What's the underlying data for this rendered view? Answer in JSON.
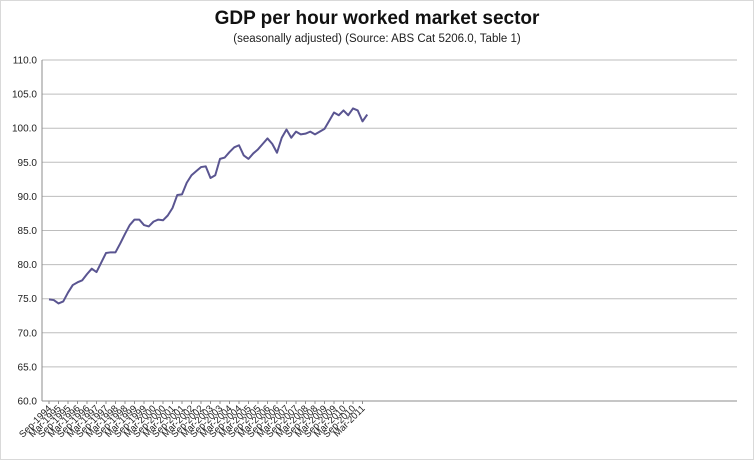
{
  "chart_data": {
    "type": "line",
    "title": "GDP per hour worked market sector",
    "subtitle": "(seasonally adjusted) (Source: ABS Cat 5206.0, Table 1)",
    "xlabel": "",
    "ylabel": "",
    "ylim": [
      60.0,
      110.0
    ],
    "yticks": [
      "60.0",
      "65.0",
      "70.0",
      "75.0",
      "80.0",
      "85.0",
      "90.0",
      "95.0",
      "100.0",
      "105.0",
      "110.0"
    ],
    "grid": true,
    "legend": "none",
    "line_color": "#5a5591",
    "x_tick_labels": [
      "Sep-1994",
      "Mar-1995",
      "Sep-1995",
      "Mar-1996",
      "Sep-1996",
      "Mar-1997",
      "Sep-1997",
      "Mar-1998",
      "Sep-1998",
      "Mar-1999",
      "Sep-1999",
      "Mar-2000",
      "Sep-2000",
      "Mar-2001",
      "Sep-2001",
      "Mar-2002",
      "Sep-2002",
      "Mar-2003",
      "Sep-2003",
      "Mar-2004",
      "Sep-2004",
      "Mar-2005",
      "Sep-2005",
      "Mar-2006",
      "Sep-2006",
      "Mar-2007",
      "Sep-2007",
      "Mar-2008",
      "Sep-2008",
      "Mar-2009",
      "Sep-2009",
      "Mar-2010",
      "Sep-2010",
      "Mar-2011"
    ],
    "x": [
      "Sep-1994",
      "Dec-1994",
      "Mar-1995",
      "Jun-1995",
      "Sep-1995",
      "Dec-1995",
      "Mar-1996",
      "Jun-1996",
      "Sep-1996",
      "Dec-1996",
      "Mar-1997",
      "Jun-1997",
      "Sep-1997",
      "Dec-1997",
      "Mar-1998",
      "Jun-1998",
      "Sep-1998",
      "Dec-1998",
      "Mar-1999",
      "Jun-1999",
      "Sep-1999",
      "Dec-1999",
      "Mar-2000",
      "Jun-2000",
      "Sep-2000",
      "Dec-2000",
      "Mar-2001",
      "Jun-2001",
      "Sep-2001",
      "Dec-2001",
      "Mar-2002",
      "Jun-2002",
      "Sep-2002",
      "Dec-2002",
      "Mar-2003",
      "Jun-2003",
      "Sep-2003",
      "Dec-2003",
      "Mar-2004",
      "Jun-2004",
      "Sep-2004",
      "Dec-2004",
      "Mar-2005",
      "Jun-2005",
      "Sep-2005",
      "Dec-2005",
      "Mar-2006",
      "Jun-2006",
      "Sep-2006",
      "Dec-2006",
      "Mar-2007",
      "Jun-2007",
      "Sep-2007",
      "Dec-2007",
      "Mar-2008",
      "Jun-2008",
      "Sep-2008",
      "Dec-2008",
      "Mar-2009",
      "Jun-2009",
      "Sep-2009",
      "Dec-2009",
      "Mar-2010",
      "Jun-2010",
      "Sep-2010",
      "Dec-2010",
      "Mar-2011",
      "Jun-2011"
    ],
    "series": [
      {
        "name": "",
        "values": [
          74.9,
          74.8,
          74.3,
          74.6,
          75.9,
          77.0,
          77.4,
          77.7,
          78.6,
          79.4,
          78.9,
          80.3,
          81.7,
          81.8,
          81.8,
          83.1,
          84.5,
          85.8,
          86.6,
          86.6,
          85.8,
          85.6,
          86.3,
          86.6,
          86.5,
          87.2,
          88.3,
          90.2,
          90.3,
          92.0,
          93.1,
          93.7,
          94.3,
          94.4,
          92.7,
          93.1,
          95.5,
          95.7,
          96.5,
          97.2,
          97.5,
          96.0,
          95.5,
          96.3,
          96.9,
          97.7,
          98.5,
          97.7,
          96.4,
          98.6,
          99.8,
          98.6,
          99.5,
          99.1,
          99.2,
          99.5,
          99.1,
          99.5,
          99.9,
          101.1,
          102.3,
          101.9,
          102.6,
          101.9,
          102.9,
          102.6,
          101.0,
          102.0
        ]
      }
    ]
  }
}
